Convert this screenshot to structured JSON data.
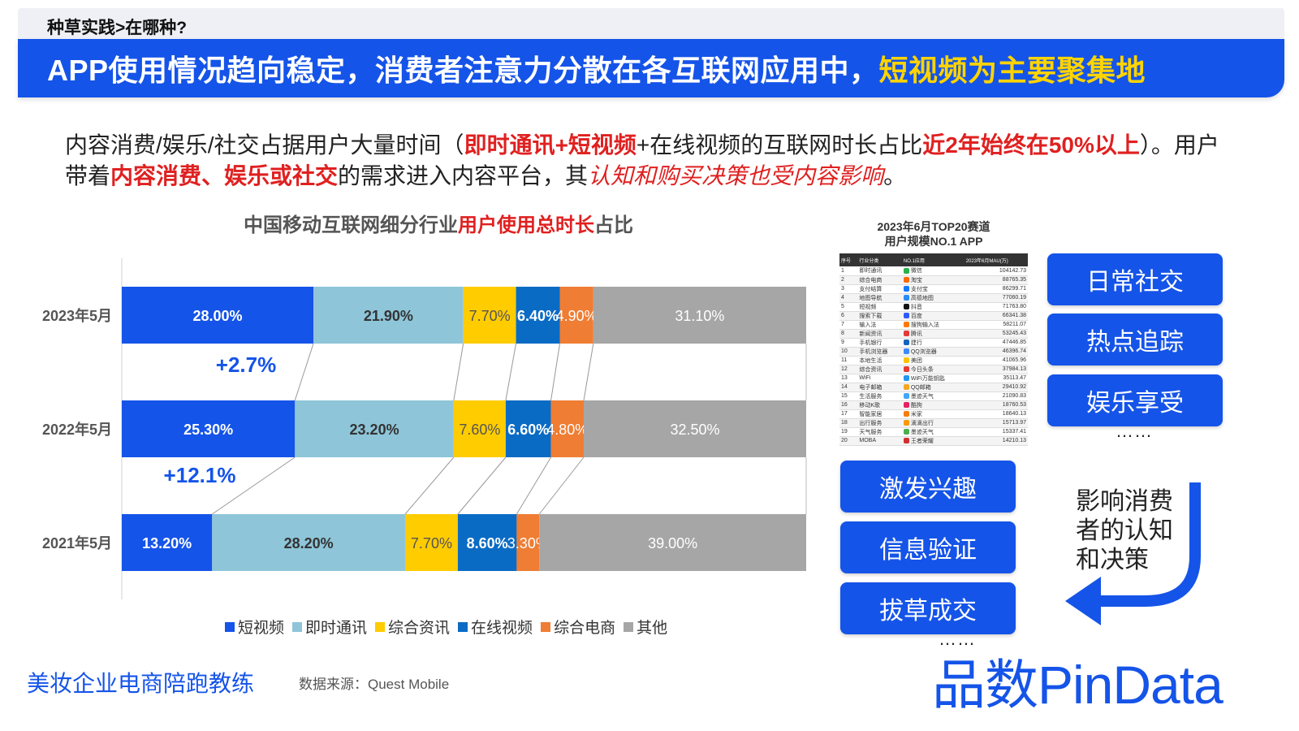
{
  "header": {
    "breadcrumb": "种草实践>在哪种?",
    "title_main": "APP使用情况趋向稳定，消费者注意力分散在各互联网应用中，",
    "title_highlight": "短视频为主要聚集地"
  },
  "intro": {
    "p1": "内容消费/娱乐/社交占据用户大量时间（",
    "p2": "即时通讯+短视频",
    "p3": "+在线视频的互联网时长占比",
    "p4": "近2年始终在50%以上",
    "p5": "）。用户带着",
    "p6": "内容消费、娱乐或社交",
    "p7": "的需求进入内容平台，其",
    "p8": "认知和购买决策也受内容影响",
    "p9": "。"
  },
  "chart_title": {
    "pre": "中国移动互联网细分行业",
    "highlight": "用户使用总时长",
    "post": "占比"
  },
  "chart_data": {
    "type": "bar",
    "orientation": "horizontal-stacked-100",
    "categories": [
      "2023年5月",
      "2022年5月",
      "2021年5月"
    ],
    "series": [
      {
        "name": "短视频",
        "color": "#1554e8",
        "values": [
          28.0,
          25.3,
          13.2
        ],
        "labels": [
          "28.00%",
          "25.30%",
          "13.20%"
        ]
      },
      {
        "name": "即时通讯",
        "color": "#8ec5d9",
        "values": [
          21.9,
          23.2,
          28.2
        ],
        "labels": [
          "21.90%",
          "23.20%",
          "28.20%"
        ]
      },
      {
        "name": "综合资讯",
        "color": "#ffcc00",
        "values": [
          7.7,
          7.6,
          7.7
        ],
        "labels": [
          "7.70%",
          "7.60%",
          "7.70%"
        ]
      },
      {
        "name": "在线视频",
        "color": "#0a6bc4",
        "values": [
          6.4,
          6.6,
          8.6
        ],
        "labels": [
          "6.40%",
          "6.60%",
          "8.60%"
        ]
      },
      {
        "name": "综合电商",
        "color": "#ef7d33",
        "values": [
          4.9,
          4.8,
          3.3
        ],
        "labels": [
          "4.90%",
          "4.80%",
          "3.30%"
        ]
      },
      {
        "name": "其他",
        "color": "#a6a6a6",
        "values": [
          31.1,
          32.5,
          39.0
        ],
        "labels": [
          "31.10%",
          "32.50%",
          "39.00%"
        ]
      }
    ],
    "annotations": [
      "+2.7%",
      "+12.1%"
    ],
    "legend": "bottom"
  },
  "table": {
    "title_line1": "2023年6月TOP20赛道",
    "title_line2": "用户规模NO.1 APP",
    "headers": [
      "序号",
      "行业分类",
      "NO.1应用",
      "2023年6月MAU(万)"
    ],
    "rows": [
      [
        "1",
        "即时通讯",
        "微信",
        "104142.73"
      ],
      [
        "2",
        "综合电商",
        "淘宝",
        "88765.35"
      ],
      [
        "3",
        "支付结算",
        "支付宝",
        "86299.71"
      ],
      [
        "4",
        "地图导航",
        "高德地图",
        "77060.19"
      ],
      [
        "5",
        "短视频",
        "抖音",
        "71763.80"
      ],
      [
        "6",
        "搜索下载",
        "百度",
        "66341.38"
      ],
      [
        "7",
        "输入法",
        "搜狗输入法",
        "58211.07"
      ],
      [
        "8",
        "新闻资讯",
        "腾讯",
        "53245.43"
      ],
      [
        "9",
        "手机银行",
        "建行",
        "47446.85"
      ],
      [
        "10",
        "手机浏览器",
        "QQ浏览器",
        "46396.74"
      ],
      [
        "11",
        "本地生活",
        "美团",
        "41065.96"
      ],
      [
        "12",
        "综合资讯",
        "今日头条",
        "37984.13"
      ],
      [
        "13",
        "WiFi",
        "WiFi万能钥匙",
        "35113.47"
      ],
      [
        "14",
        "电子邮箱",
        "QQ邮箱",
        "29410.92"
      ],
      [
        "15",
        "生活服务",
        "墨迹天气",
        "21090.83"
      ],
      [
        "16",
        "移动K歌",
        "酷狗",
        "18760.53"
      ],
      [
        "17",
        "智能家居",
        "米家",
        "18640.13"
      ],
      [
        "18",
        "出行服务",
        "滴滴出行",
        "15713.97"
      ],
      [
        "19",
        "天气服务",
        "墨迹天气",
        "15337.41"
      ],
      [
        "20",
        "MOBA",
        "王者荣耀",
        "14210.13"
      ]
    ]
  },
  "pills": {
    "right": [
      "日常社交",
      "热点追踪",
      "娱乐享受"
    ],
    "left": [
      "激发兴趣",
      "信息验证",
      "拔草成交"
    ],
    "ellipsis": "……"
  },
  "influence_text": "影响消费者的认知和决策",
  "footer": {
    "left": "美妆企业电商陪跑教练",
    "source": "数据来源：Quest Mobile",
    "logo": "品数PinData"
  },
  "colors": {
    "brand_blue": "#1554e8",
    "highlight_yellow": "#ffd400",
    "highlight_red": "#e02020"
  }
}
